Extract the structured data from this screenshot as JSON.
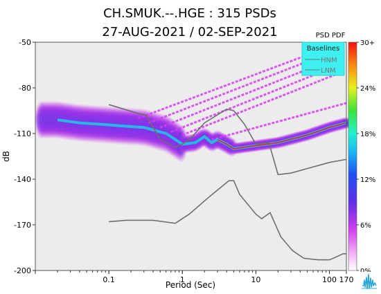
{
  "chart_data": {
    "type": "heatmap",
    "title_line1": "CH.SMUK.--.HGE : 315 PSDs",
    "title_line2": "27-AUG-2021 / 02-SEP-2021",
    "xlabel": "Period (Sec)",
    "ylabel": "dB",
    "x_scale": "log",
    "xlim": [
      0.01,
      170
    ],
    "ylim": [
      -200,
      -50
    ],
    "x_ticks": [
      {
        "value": 0.1,
        "label": "0.1"
      },
      {
        "value": 1,
        "label": "1"
      },
      {
        "value": 10,
        "label": "10"
      },
      {
        "value": 100,
        "label": "100"
      },
      {
        "value": 170,
        "label": "170"
      }
    ],
    "y_ticks": [
      {
        "value": -50,
        "label": "-50"
      },
      {
        "value": -80,
        "label": "-80"
      },
      {
        "value": -110,
        "label": "-110"
      },
      {
        "value": -140,
        "label": "-140"
      },
      {
        "value": -170,
        "label": "-170"
      },
      {
        "value": -200,
        "label": "-200"
      }
    ],
    "legend": {
      "title": "Baselines",
      "placement": "top-right",
      "entries": [
        "HNM",
        "LNM"
      ]
    },
    "colorbar": {
      "title": "PSD PDF",
      "ticks": [
        "30+",
        "24%",
        "18%",
        "12%",
        "6%",
        "0%"
      ]
    },
    "series": [
      {
        "name": "HNM",
        "x": [
          0.1,
          0.22,
          0.32,
          0.5,
          0.8,
          1.0,
          1.3,
          2.0,
          4.0,
          5.0,
          7.0,
          10,
          15,
          20,
          30,
          50,
          100,
          170
        ],
        "y": [
          -91,
          -96,
          -98,
          -114,
          -119,
          -117,
          -113,
          -103,
          -94,
          -95,
          -104,
          -117,
          -116,
          -137,
          -136,
          -133,
          -129,
          -127
        ]
      },
      {
        "name": "LNM",
        "x": [
          0.1,
          0.17,
          0.4,
          0.8,
          1.24,
          2.4,
          4.3,
          5.0,
          6.0,
          10,
          12,
          15.6,
          21.9,
          31.6,
          45,
          70,
          101,
          154,
          170
        ],
        "y": [
          -168,
          -167,
          -167,
          -169,
          -163,
          -151,
          -141,
          -141,
          -150,
          -163,
          -166,
          -162,
          -178,
          -187,
          -192,
          -193,
          -193,
          -189,
          -189
        ]
      }
    ],
    "pdf_mode_curve": {
      "x": [
        0.02,
        0.04,
        0.08,
        0.15,
        0.3,
        0.6,
        1.0,
        1.5,
        2.0,
        2.5,
        3.0,
        4.0,
        5.0,
        7.0,
        10,
        20,
        50,
        100,
        170
      ],
      "y": [
        -101,
        -103,
        -104,
        -105,
        -106,
        -110,
        -117,
        -116,
        -112,
        -116,
        -114,
        -117,
        -120,
        -119,
        -118,
        -116,
        -111,
        -106,
        -103
      ]
    }
  },
  "logo": {
    "name": "waveform logo",
    "color": "#2aa7d8"
  }
}
